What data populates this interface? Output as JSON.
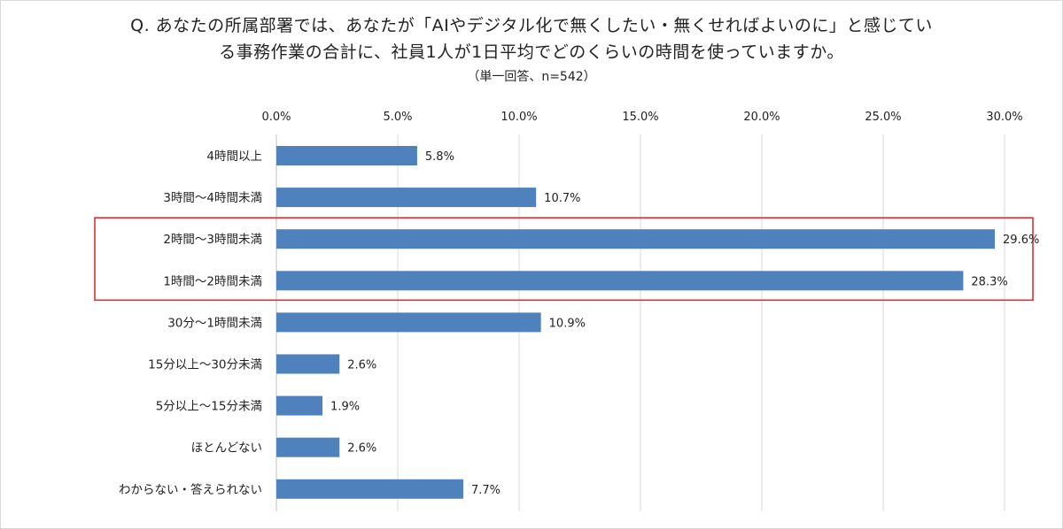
{
  "chart_data": {
    "type": "bar",
    "orientation": "horizontal",
    "title_line1": "Q. あなたの所属部署では、あなたが「AIやデジタル化で無くしたい・無くせればよいのに」と感じてい",
    "title_line2": "る事務作業の合計に、社員1人が1日平均でどのくらいの時間を使っていますか。",
    "subtitle": "（単一回答、n=542）",
    "categories": [
      "4時間以上",
      "3時間～4時間未満",
      "2時間～3時間未満",
      "1時間～2時間未満",
      "30分～1時間未満",
      "15分以上～30分未満",
      "5分以上～15分未満",
      "ほとんどない",
      "わからない・答えられない"
    ],
    "values": [
      5.8,
      10.7,
      29.6,
      28.3,
      10.9,
      2.6,
      1.9,
      2.6,
      7.7
    ],
    "value_labels": [
      "5.8%",
      "10.7%",
      "29.6%",
      "28.3%",
      "10.9%",
      "2.6%",
      "1.9%",
      "2.6%",
      "7.7%"
    ],
    "xlim": [
      0,
      30
    ],
    "xticks": [
      0,
      5,
      10,
      15,
      20,
      25,
      30
    ],
    "xtick_labels": [
      "0.0%",
      "5.0%",
      "10.0%",
      "15.0%",
      "20.0%",
      "25.0%",
      "30.0%"
    ],
    "x_axis_position": "top",
    "grid": true,
    "highlighted_categories": [
      "2時間～3時間未満",
      "1時間～2時間未満"
    ],
    "colors": {
      "bar": "#4f81bd",
      "grid": "#d9d9d9",
      "highlight_border": "#e03030"
    }
  }
}
